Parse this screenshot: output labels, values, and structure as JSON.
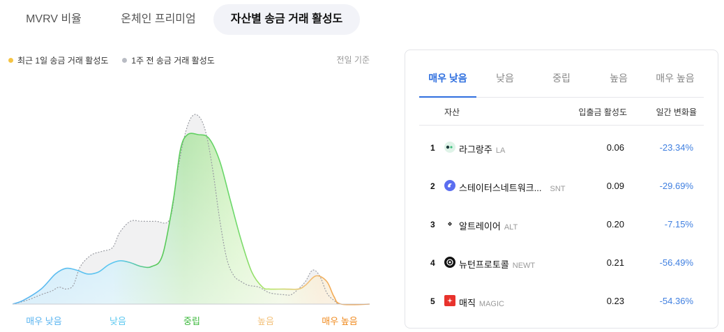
{
  "top_tabs": [
    {
      "label": "MVRV 비율",
      "active": false
    },
    {
      "label": "온체인 프리미엄",
      "active": false
    },
    {
      "label": "자산별 송금 거래 활성도",
      "active": true
    }
  ],
  "legend": {
    "current_label": "최근 1일 송금 거래 활성도",
    "current_color": "#f5c444",
    "prev_label": "1주 전 송금 거래 활성도",
    "prev_color": "#b9bcc4",
    "basis": "전일 기준"
  },
  "chart_data": {
    "type": "area",
    "x_categories": [
      "매우 낮음",
      "낮음",
      "중립",
      "높음",
      "매우 높음"
    ],
    "category_colors": [
      "#5ab4f0",
      "#5cc8f0",
      "#3bb83b",
      "#f3c17a",
      "#f08a1e"
    ],
    "x_range": [
      0,
      100
    ],
    "series": [
      {
        "name": "최근 1일 송금 거래 활성도",
        "points": [
          [
            0,
            0
          ],
          [
            3,
            2
          ],
          [
            8,
            8
          ],
          [
            12,
            16
          ],
          [
            15,
            19
          ],
          [
            18,
            18
          ],
          [
            21,
            16
          ],
          [
            24,
            17
          ],
          [
            27,
            21
          ],
          [
            30,
            23
          ],
          [
            33,
            22
          ],
          [
            36,
            20
          ],
          [
            39,
            20
          ],
          [
            42,
            26
          ],
          [
            45,
            55
          ],
          [
            47,
            82
          ],
          [
            49,
            90
          ],
          [
            52,
            90
          ],
          [
            55,
            88
          ],
          [
            58,
            76
          ],
          [
            61,
            55
          ],
          [
            64,
            34
          ],
          [
            67,
            17
          ],
          [
            70,
            9
          ],
          [
            72,
            8
          ],
          [
            76,
            8
          ],
          [
            80,
            8
          ],
          [
            82,
            10
          ],
          [
            85,
            15
          ],
          [
            88,
            12
          ],
          [
            90,
            4
          ],
          [
            92,
            0
          ],
          [
            100,
            0
          ]
        ]
      },
      {
        "name": "1주 전 송금 거래 활성도",
        "points": [
          [
            0,
            0
          ],
          [
            4,
            2
          ],
          [
            8,
            5
          ],
          [
            11,
            7
          ],
          [
            13,
            9
          ],
          [
            15,
            8
          ],
          [
            17,
            10
          ],
          [
            19,
            20
          ],
          [
            22,
            26
          ],
          [
            25,
            28
          ],
          [
            28,
            30
          ],
          [
            30,
            38
          ],
          [
            33,
            44
          ],
          [
            36,
            44
          ],
          [
            40,
            44
          ],
          [
            44,
            45
          ],
          [
            46,
            68
          ],
          [
            48,
            88
          ],
          [
            50,
            99
          ],
          [
            52,
            100
          ],
          [
            54,
            92
          ],
          [
            56,
            72
          ],
          [
            58,
            45
          ],
          [
            60,
            24
          ],
          [
            62,
            15
          ],
          [
            64,
            12
          ],
          [
            66,
            10
          ],
          [
            69,
            9
          ],
          [
            72,
            6
          ],
          [
            76,
            5
          ],
          [
            78,
            5
          ],
          [
            80,
            8
          ],
          [
            82,
            12
          ],
          [
            84,
            18
          ],
          [
            86,
            15
          ],
          [
            88,
            6
          ],
          [
            90,
            2
          ],
          [
            92,
            0
          ],
          [
            100,
            0
          ]
        ]
      }
    ]
  },
  "panel": {
    "tabs": [
      "매우 낮음",
      "낮음",
      "중립",
      "높음",
      "매우 높음"
    ],
    "active_tab": 0,
    "col_asset": "자산",
    "col_activity": "입출금 활성도",
    "col_change": "일간 변화율",
    "rows": [
      {
        "rank": "1",
        "name": "라그랑주",
        "symbol": "LA",
        "icon": "lagrange-icon",
        "icon_color": "#dff3e8",
        "activity": "0.06",
        "change": "-23.34%"
      },
      {
        "rank": "2",
        "name": "스테이터스네트워크...",
        "symbol": "SNT",
        "icon": "status-icon",
        "icon_color": "#5b6ef0",
        "activity": "0.09",
        "change": "-29.69%"
      },
      {
        "rank": "3",
        "name": "알트레이어",
        "symbol": "ALT",
        "icon": "altlayer-icon",
        "icon_color": "#ffffff",
        "activity": "0.20",
        "change": "-7.15%"
      },
      {
        "rank": "4",
        "name": "뉴턴프로토콜",
        "symbol": "NEWT",
        "icon": "newton-icon",
        "icon_color": "#111111",
        "activity": "0.21",
        "change": "-56.49%"
      },
      {
        "rank": "5",
        "name": "매직",
        "symbol": "MAGIC",
        "icon": "magic-icon",
        "icon_color": "#e8322c",
        "activity": "0.23",
        "change": "-54.36%"
      }
    ]
  }
}
